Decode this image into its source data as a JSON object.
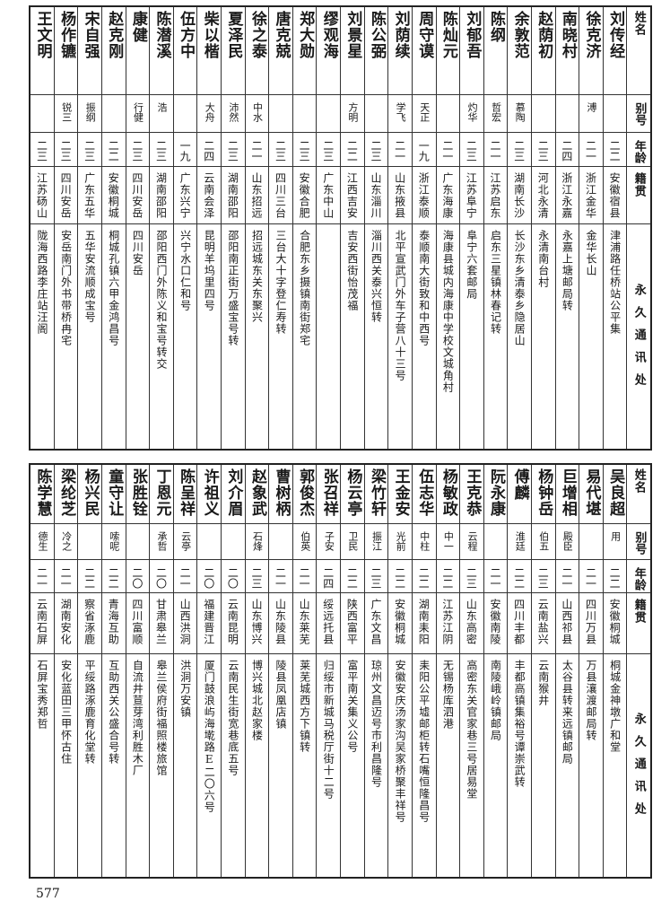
{
  "headers": {
    "name": "姓名",
    "alias": "别号",
    "age": "年龄",
    "origin": "籍贯",
    "address": "永久通讯处"
  },
  "tables": [
    {
      "rows": [
        {
          "name": "刘传经",
          "alias": "",
          "age": "二二",
          "origin": "安徽宿县",
          "address": "津浦路任桥站公平集"
        },
        {
          "name": "徐克济",
          "alias": "溥",
          "age": "二一",
          "origin": "浙江金华",
          "address": "金华长山"
        },
        {
          "name": "南晓村",
          "alias": "",
          "age": "二四",
          "origin": "浙江永嘉",
          "address": "永嘉上塘邮局转"
        },
        {
          "name": "赵荫初",
          "alias": "",
          "age": "二三",
          "origin": "河北永清",
          "address": "永清南台村"
        },
        {
          "name": "余敦范",
          "alias": "慕陶",
          "age": "二三",
          "origin": "湖南长沙",
          "address": "长沙东乡清泰乡隐居山"
        },
        {
          "name": "陈纲",
          "alias": "哲宏",
          "age": "二一",
          "origin": "江苏启东",
          "address": "启东三星镇林春记转"
        },
        {
          "name": "刘郁吾",
          "alias": "灼华",
          "age": "二三",
          "origin": "江苏阜宁",
          "address": "阜宁六套邮局"
        },
        {
          "name": "陈灿元",
          "alias": "",
          "age": "二一",
          "origin": "广东海康",
          "address": "海康县城内海康中学校文城角村"
        },
        {
          "name": "周守谟",
          "alias": "天正",
          "age": "一九",
          "origin": "浙江泰顺",
          "address": "泰顺南大街致和中西号"
        },
        {
          "name": "刘荫续",
          "alias": "学飞",
          "age": "二一",
          "origin": "山东掖县",
          "address": "北平宣武门外车子营八十三号"
        },
        {
          "name": "陈公弼",
          "alias": "",
          "age": "二三",
          "origin": "山东淄川",
          "address": "淄川西关泰兴恒转"
        },
        {
          "name": "刘景星",
          "alias": "方明",
          "age": "二二",
          "origin": "江西吉安",
          "address": "吉安西街怡茂福"
        },
        {
          "name": "缪观海",
          "alias": "",
          "age": "二三",
          "origin": "广东中山",
          "address": ""
        },
        {
          "name": "郑大勋",
          "alias": "",
          "age": "二三",
          "origin": "安徽合肥",
          "address": "合肥东乡摄镇南街郑宅"
        },
        {
          "name": "唐克兢",
          "alias": "",
          "age": "二三",
          "origin": "四川三台",
          "address": "三台大十字登仁寿转"
        },
        {
          "name": "徐之泰",
          "alias": "中水",
          "age": "二一",
          "origin": "山东招远",
          "address": "招远城东关东聚兴"
        },
        {
          "name": "夏泽民",
          "alias": "沛然",
          "age": "二三",
          "origin": "湖南邵阳",
          "address": "邵阳南正街万盛宝号转"
        },
        {
          "name": "柴以楷",
          "alias": "大舟",
          "age": "二四",
          "origin": "云南会泽",
          "address": "昆明羊坞里四号"
        },
        {
          "name": "伍方中",
          "alias": "",
          "age": "一九",
          "origin": "广东兴宁",
          "address": "兴宁水口仁和号"
        },
        {
          "name": "陈潜溪",
          "alias": "浩",
          "age": "二三",
          "origin": "湖南邵阳",
          "address": "邵阳西门外陈义和宝号转交"
        },
        {
          "name": "康健",
          "alias": "行健",
          "age": "二三",
          "origin": "四川安岳",
          "address": "四川安岳"
        },
        {
          "name": "赵克刚",
          "alias": "",
          "age": "二二",
          "origin": "安徽桐城",
          "address": "桐城孔镇六甲金鸿昌号"
        },
        {
          "name": "宋自强",
          "alias": "振纲",
          "age": "二三",
          "origin": "广东五华",
          "address": "五华安流顺成宝号"
        },
        {
          "name": "杨作镳",
          "alias": "锐三",
          "age": "二三",
          "origin": "四川安岳",
          "address": "安岳南门外书带桥冉宅"
        },
        {
          "name": "王文明",
          "alias": "",
          "age": "二三",
          "origin": "江苏砀山",
          "address": "陇海西路李庄站汪阁"
        }
      ]
    },
    {
      "rows": [
        {
          "name": "吴良超",
          "alias": "用",
          "age": "二二",
          "origin": "安徽桐城",
          "address": "桐城金神墩广和堂"
        },
        {
          "name": "易代堪",
          "alias": "",
          "age": "二一",
          "origin": "四川万县",
          "address": "万县瀼渡邮局转"
        },
        {
          "name": "巨增相",
          "alias": "殿臣",
          "age": "二一",
          "origin": "山西祁县",
          "address": "太谷县转来远镇邮局"
        },
        {
          "name": "杨钟岳",
          "alias": "伯五",
          "age": "二三",
          "origin": "云南盐兴",
          "address": "云南猴井"
        },
        {
          "name": "傅麟",
          "alias": "淮廷",
          "age": "二二",
          "origin": "四川丰都",
          "address": "丰都高镇集裕号谭崇武转"
        },
        {
          "name": "阮永康",
          "alias": "",
          "age": "二一",
          "origin": "安徽南陵",
          "address": "南陵峨岭镇邮局"
        },
        {
          "name": "王克恭",
          "alias": "云程",
          "age": "二三",
          "origin": "山东高密",
          "address": "高密东关官家巷三号居易堂"
        },
        {
          "name": "杨敏政",
          "alias": "中一",
          "age": "二二",
          "origin": "江苏江阴",
          "address": "无锡杨库泗港"
        },
        {
          "name": "伍志华",
          "alias": "中柱",
          "age": "二二",
          "origin": "湖南耒阳",
          "address": "耒阳公平墟邮柜转石嘴恒隆昌号"
        },
        {
          "name": "王金安",
          "alias": "光前",
          "age": "二二",
          "origin": "安徽桐城",
          "address": "安徽安庆汤家沟吴家桥聚丰祥号"
        },
        {
          "name": "梁竹轩",
          "alias": "振江",
          "age": "二三",
          "origin": "广东文昌",
          "address": "琼州文昌迈号市利昌隆号"
        },
        {
          "name": "杨云亭",
          "alias": "卫民",
          "age": "二二",
          "origin": "陕西富平",
          "address": "富平南关集义公号"
        },
        {
          "name": "张召祥",
          "alias": "子安",
          "age": "二四",
          "origin": "绥远托县",
          "address": "归绥市新城马税厅街十二号"
        },
        {
          "name": "郭俊杰",
          "alias": "伯英",
          "age": "二一",
          "origin": "山东莱芜",
          "address": "莱芜城西方下镇转"
        },
        {
          "name": "曹树柄",
          "alias": "",
          "age": "二一",
          "origin": "山东陵县",
          "address": "陵县凤凰店镇"
        },
        {
          "name": "赵象武",
          "alias": "石烽",
          "age": "二三",
          "origin": "山东博兴",
          "address": "博兴城北赵家楼"
        },
        {
          "name": "刘介眉",
          "alias": "",
          "age": "二〇",
          "origin": "云南昆明",
          "address": "云南民生街宽巷底五号"
        },
        {
          "name": "许祖义",
          "alias": "",
          "age": "二〇",
          "origin": "福建晋江",
          "address": "厦门鼓浪屿海墘路E二〇六号"
        },
        {
          "name": "陈呈祥",
          "alias": "云亭",
          "age": "二一",
          "origin": "山西洪洞",
          "address": "洪洞万安镇"
        },
        {
          "name": "丁恩元",
          "alias": "承哲",
          "age": "二〇",
          "origin": "甘肃皋兰",
          "address": "皋兰侯府街福照楼旅馆"
        },
        {
          "name": "张胜铨",
          "alias": "",
          "age": "二〇",
          "origin": "四川富顺",
          "address": "自流井荁芽湾利胜木厂"
        },
        {
          "name": "童守让",
          "alias": "嗦呢",
          "age": "二二",
          "origin": "青海互助",
          "address": "互助西关公盛合号转"
        },
        {
          "name": "杨兴民",
          "alias": "",
          "age": "二二",
          "origin": "察省涿鹿",
          "address": "平绥路涿鹿育化堂转"
        },
        {
          "name": "梁纶芝",
          "alias": "冷之",
          "age": "二一",
          "origin": "湖南安化",
          "address": "安化蓝田三甲怀古住"
        },
        {
          "name": "陈学慧",
          "alias": "德生",
          "age": "二一",
          "origin": "云南石屏",
          "address": "石屏宝秀郑哲"
        }
      ]
    }
  ],
  "page_number": "577"
}
